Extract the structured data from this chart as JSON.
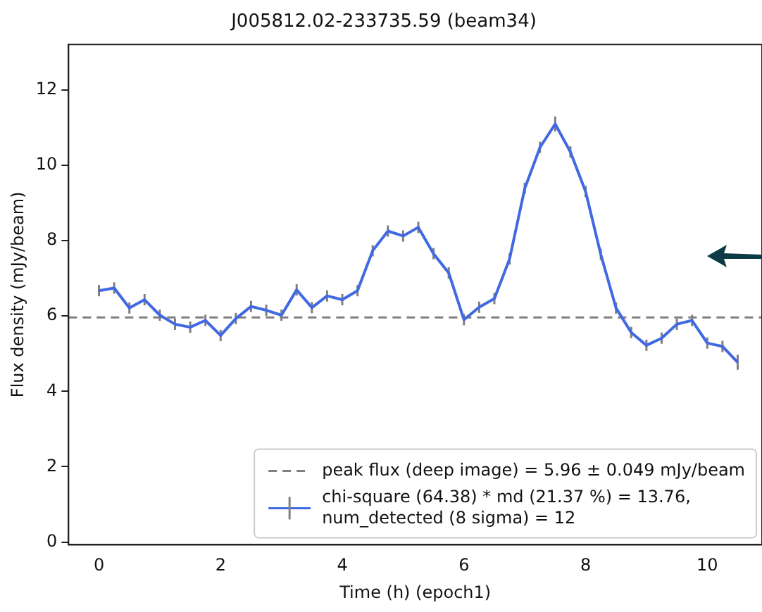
{
  "chart_data": {
    "type": "line",
    "title": "J005812.02-233735.59 (beam34)",
    "xlabel": "Time (h) (epoch1)",
    "ylabel": "Flux density (mJy/beam)",
    "x": [
      0,
      0.25,
      0.5,
      0.75,
      1,
      1.25,
      1.5,
      1.75,
      2,
      2.25,
      2.5,
      2.75,
      3,
      3.25,
      3.5,
      3.75,
      4,
      4.25,
      4.5,
      4.75,
      5,
      5.25,
      5.5,
      5.75,
      6,
      6.25,
      6.5,
      6.75,
      7,
      7.25,
      7.5,
      7.75,
      8,
      8.25,
      8.5,
      8.75,
      9,
      9.25,
      9.5,
      9.75,
      10,
      10.25,
      10.5
    ],
    "series": [
      {
        "name": "chi-square (64.38) * md (21.37 %) = 13.76, num_detected (8 sigma) = 12",
        "color": "#4169e1",
        "values": [
          6.67,
          6.74,
          6.21,
          6.43,
          6.02,
          5.78,
          5.7,
          5.88,
          5.48,
          5.93,
          6.25,
          6.15,
          6.02,
          6.69,
          6.22,
          6.53,
          6.43,
          6.67,
          7.73,
          8.25,
          8.12,
          8.35,
          7.65,
          7.14,
          5.9,
          6.23,
          6.46,
          7.51,
          9.38,
          10.47,
          11.09,
          10.35,
          9.3,
          7.63,
          6.21,
          5.56,
          5.22,
          5.41,
          5.78,
          5.88,
          5.28,
          5.19,
          4.77
        ],
        "errors": [
          0.15,
          0.15,
          0.15,
          0.15,
          0.15,
          0.15,
          0.15,
          0.15,
          0.15,
          0.15,
          0.15,
          0.15,
          0.15,
          0.15,
          0.15,
          0.15,
          0.15,
          0.15,
          0.15,
          0.15,
          0.15,
          0.15,
          0.15,
          0.15,
          0.15,
          0.15,
          0.15,
          0.15,
          0.15,
          0.15,
          0.2,
          0.15,
          0.15,
          0.15,
          0.15,
          0.15,
          0.15,
          0.15,
          0.15,
          0.15,
          0.15,
          0.15,
          0.2
        ]
      }
    ],
    "ref_lines": [
      {
        "axis": "y",
        "value": 5.96,
        "label": "peak flux (deep image) = 5.96 ± 0.049 mJy/beam",
        "color": "#808080",
        "line_style": "dashed"
      }
    ],
    "xlim": [
      -0.5,
      10.9
    ],
    "ylim": [
      -0.07,
      13.2
    ],
    "xticks": [
      0,
      2,
      4,
      6,
      8,
      10
    ],
    "yticks": [
      0,
      2,
      4,
      6,
      8,
      10,
      12
    ],
    "grid": false,
    "legend": "bottom right",
    "marker": "none",
    "line_style": "solid"
  }
}
